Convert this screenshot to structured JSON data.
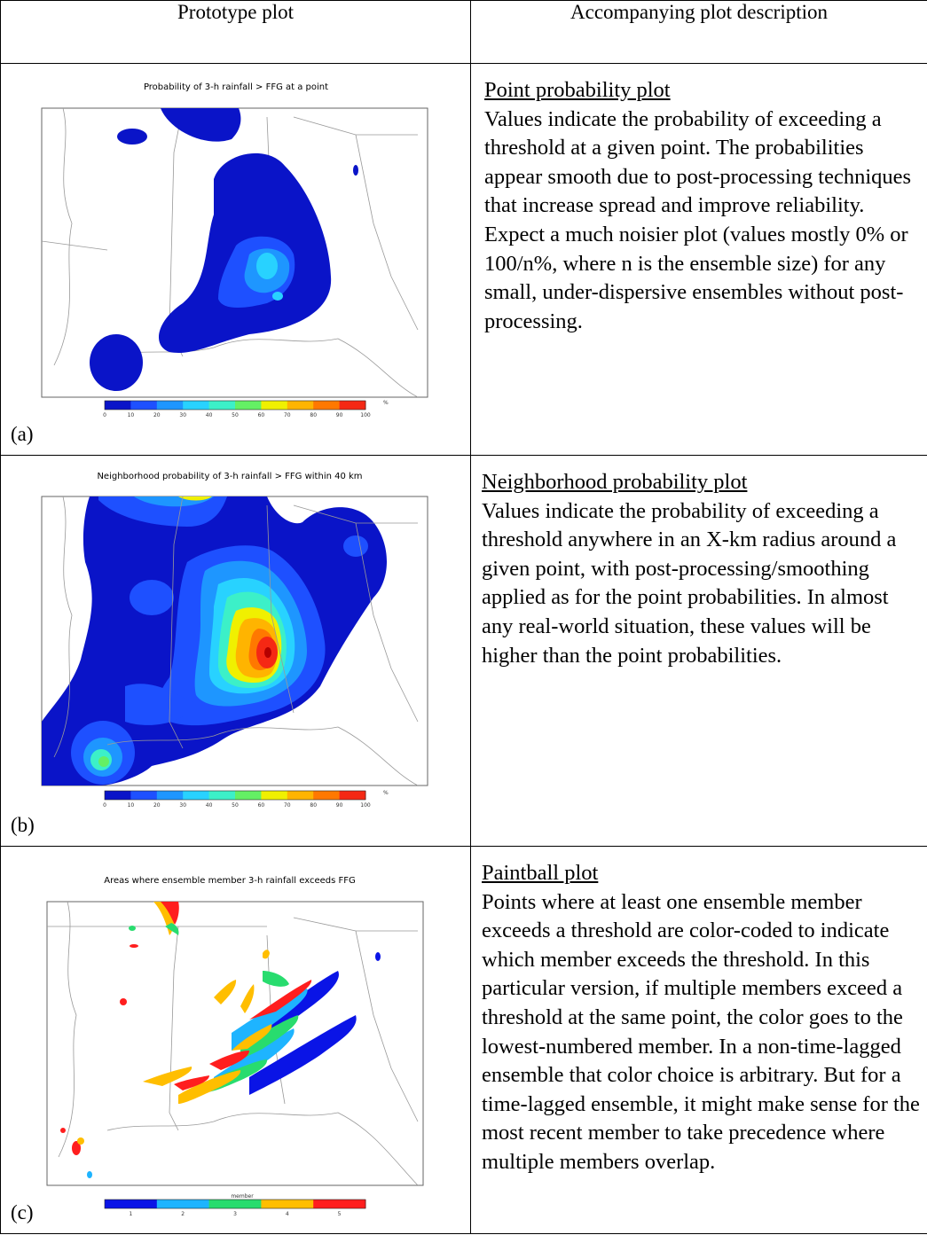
{
  "header": {
    "col1": "Prototype plot",
    "col2": "Accompanying plot description"
  },
  "rows": [
    {
      "letter": "(a)",
      "plot_title": "Probability of 3-h rainfall > FFG at a point",
      "colorbar_ticks": [
        "0",
        "10",
        "20",
        "30",
        "40",
        "50",
        "60",
        "70",
        "80",
        "90",
        "100"
      ],
      "colorbar_unit": "%",
      "desc_title": "Point probability plot",
      "desc_text": "Values indicate the probability of exceeding a threshold at a given point. The probabilities appear smooth due to post-processing techniques that increase spread and improve reliability. Expect a much noisier plot (values mostly 0% or 100/n%, where n is the ensemble size) for any small, under-dispersive ensembles without post-processing."
    },
    {
      "letter": "(b)",
      "plot_title": "Neighborhood probability of 3-h rainfall > FFG within 40 km",
      "colorbar_ticks": [
        "0",
        "10",
        "20",
        "30",
        "40",
        "50",
        "60",
        "70",
        "80",
        "90",
        "100"
      ],
      "colorbar_unit": "%",
      "desc_title": "Neighborhood probability plot",
      "desc_text": "Values indicate the probability of exceeding a threshold anywhere in an X-km radius around a given point, with post-processing/smoothing applied as for the point probabilities. In almost any real-world situation, these values will be higher than the point probabilities."
    },
    {
      "letter": "(c)",
      "plot_title": "Areas where ensemble member 3-h rainfall exceeds FFG",
      "colorbar_label": "member",
      "colorbar_ticks": [
        "1",
        "2",
        "3",
        "4",
        "5"
      ],
      "desc_title": "Paintball plot",
      "desc_text": "Points where at least one ensemble member exceeds a threshold are color-coded to indicate which member exceeds the threshold. In this particular version, if multiple members exceed a threshold at the same point, the color goes to the lowest-numbered member. In a non-time-lagged ensemble that color choice is arbitrary. But for a time-lagged ensemble, it might make sense for the most recent member to take precedence where multiple members overlap."
    }
  ],
  "colors": {
    "prob_scale": [
      "#0a14c8",
      "#1e50ff",
      "#1e96ff",
      "#28d2ff",
      "#3cf0c8",
      "#64f064",
      "#f0f000",
      "#ffb400",
      "#ff7800",
      "#f52814",
      "#b40000"
    ],
    "member_scale": [
      "#0a14e6",
      "#1eb4ff",
      "#28dc6e",
      "#ffbe00",
      "#ff1e1e"
    ]
  }
}
